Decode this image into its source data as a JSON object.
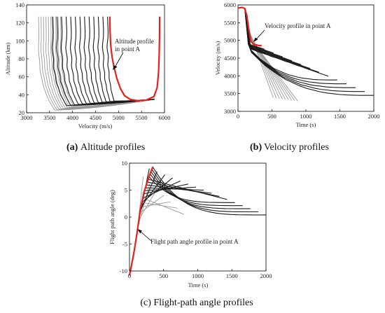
{
  "chart_data": [
    {
      "id": "a",
      "type": "line",
      "caption_letter": "(a)",
      "caption_text": " Altitude profiles",
      "xlabel": "Velocity (m/s)",
      "ylabel": "Altitude (km)",
      "xlim": [
        3000,
        6000
      ],
      "ylim": [
        20,
        140
      ],
      "xticks": [
        3000,
        3500,
        4000,
        4500,
        5000,
        5500,
        6000
      ],
      "yticks": [
        20,
        40,
        60,
        80,
        100,
        120,
        140
      ],
      "annotation": [
        "Altitude profile",
        "in point A"
      ],
      "highlight": {
        "name": "point A",
        "color": "#e8201c",
        "points": [
          [
            4810,
            127
          ],
          [
            4815,
            110
          ],
          [
            4830,
            95
          ],
          [
            4860,
            82
          ],
          [
            4905,
            70
          ],
          [
            4965,
            58
          ],
          [
            5040,
            47
          ],
          [
            5130,
            39
          ],
          [
            5250,
            35
          ],
          [
            5400,
            33.5
          ],
          [
            5600,
            34
          ],
          [
            5770,
            38
          ],
          [
            5840,
            48
          ],
          [
            5870,
            65
          ],
          [
            5885,
            85
          ],
          [
            5892,
            105
          ],
          [
            5895,
            127
          ]
        ]
      },
      "families": [
        {
          "count": 10,
          "color": "#9a9a9a",
          "v_start_first": 3260,
          "v_start_last": 3740,
          "h_min_first": 23,
          "h_min_last": 27
        },
        {
          "count": 13,
          "color": "#1a1a1a",
          "v_start_first": 3560,
          "v_start_last": 4760,
          "h_min_first": 28,
          "h_min_last": 33
        }
      ],
      "common_end": [
        5780,
        35
      ]
    },
    {
      "id": "b",
      "type": "line",
      "caption_letter": "(b)",
      "caption_text": " Velocity profiles",
      "xlabel": "Time (s)",
      "ylabel": "Velocity (m/s)",
      "xlim": [
        0,
        2000
      ],
      "ylim": [
        3000,
        6000
      ],
      "xticks": [
        0,
        500,
        1000,
        1500,
        2000
      ],
      "yticks": [
        3000,
        3500,
        4000,
        4500,
        5000,
        5500,
        6000
      ],
      "annotation": [
        "Velocity profile in point A"
      ],
      "highlight": {
        "name": "point A",
        "color": "#e8201c",
        "points": [
          [
            0,
            5910
          ],
          [
            60,
            5930
          ],
          [
            100,
            5900
          ],
          [
            130,
            5700
          ],
          [
            160,
            5300
          ],
          [
            190,
            4980
          ],
          [
            230,
            4890
          ],
          [
            300,
            4860
          ],
          [
            350,
            4850
          ]
        ]
      },
      "families": [
        {
          "count": 9,
          "color": "#9a9a9a",
          "t_end_first": 520,
          "t_end_last": 880,
          "v_end_first": 3380,
          "v_end_last": 3290
        },
        {
          "count": 13,
          "color": "#1a1a1a",
          "t_end_first": 390,
          "t_end_last": 2000,
          "v_end_first": 4750,
          "v_end_last": 3450
        }
      ]
    },
    {
      "id": "c",
      "type": "line",
      "caption_letter": "",
      "caption_text": "(c) Flight-path angle profiles",
      "xlabel": "Time (s)",
      "ylabel": "Flight path angle (deg)",
      "xlim": [
        0,
        2000
      ],
      "ylim": [
        -10,
        10
      ],
      "xticks": [
        0,
        500,
        1000,
        1500,
        2000
      ],
      "yticks": [
        -10,
        -5,
        0,
        5,
        10
      ],
      "annotation": [
        "Flight path angle profile in point A"
      ],
      "highlight": {
        "name": "point A",
        "color": "#e8201c",
        "points": [
          [
            0,
            -10.8
          ],
          [
            60,
            -7
          ],
          [
            110,
            -3
          ],
          [
            160,
            1.5
          ],
          [
            210,
            4.5
          ],
          [
            260,
            6.5
          ],
          [
            300,
            8
          ],
          [
            340,
            9.3
          ]
        ]
      },
      "families": [
        {
          "count": 7,
          "color": "#9a9a9a",
          "t_end_first": 200,
          "t_end_last": 800,
          "g_end_first": 7.5,
          "g_end_last": 0.5
        },
        {
          "count": 16,
          "color": "#1a1a1a",
          "t_end_first": 290,
          "t_end_last": 2000,
          "g_end_first": 9.0,
          "g_end_last": 0.4
        }
      ]
    }
  ]
}
